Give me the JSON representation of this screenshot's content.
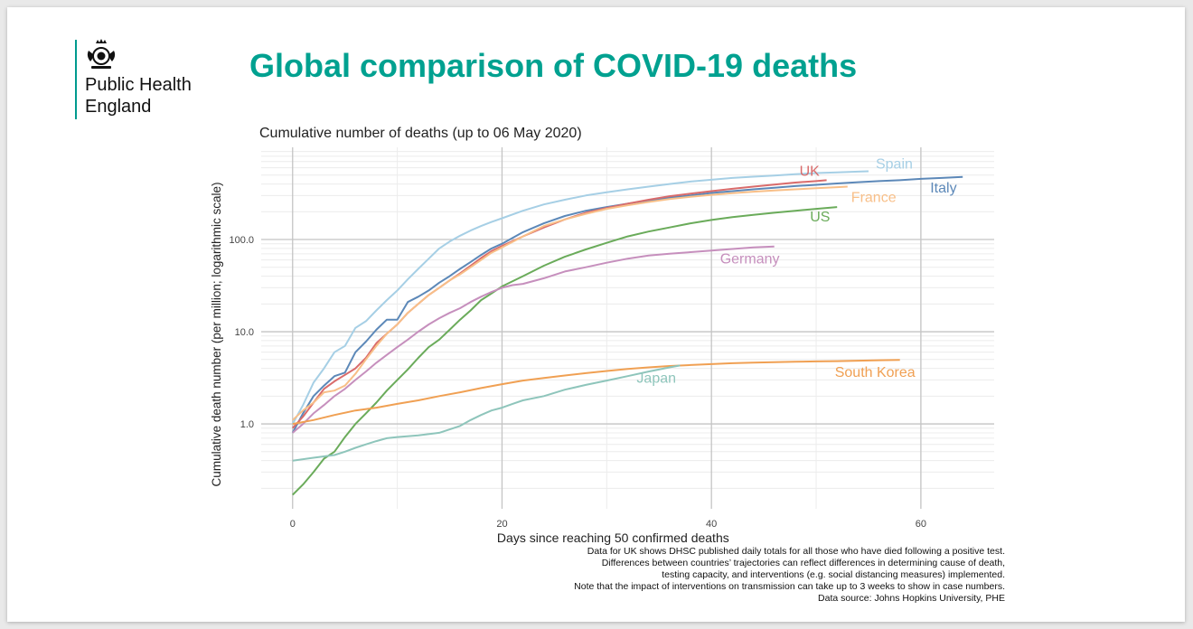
{
  "slide": {
    "org_line1": "Public Health",
    "org_line2": "England",
    "title": "Global comparison of COVID-19 deaths",
    "accent_color": "#00a190",
    "logo_icon": "royal-crest-icon"
  },
  "chart_data": {
    "type": "line",
    "title": "Cumulative number of deaths (up to 06 May 2020)",
    "xlabel": "Days since reaching 50 confirmed deaths",
    "ylabel": "Cumulative death number (per million; logarithmic scale)",
    "y_scale": "log",
    "xlim": [
      -3,
      67
    ],
    "ylim": [
      0.12,
      1000
    ],
    "x_ticks": [
      0,
      20,
      40,
      60
    ],
    "x_tick_labels": [
      "0",
      "20",
      "40",
      "60"
    ],
    "y_ticks": [
      1,
      10,
      100
    ],
    "y_tick_labels": [
      "1.0",
      "10.0",
      "100.0"
    ],
    "grid": true,
    "legend": "direct labels at line ends",
    "series": [
      {
        "name": "Spain",
        "color": "#a6cfe5",
        "x": [
          0,
          1,
          2,
          3,
          4,
          5,
          6,
          7,
          8,
          9,
          10,
          11,
          12,
          13,
          14,
          15,
          16,
          17,
          18,
          19,
          20,
          22,
          24,
          26,
          28,
          30,
          32,
          34,
          36,
          38,
          40,
          42,
          44,
          46,
          48,
          50,
          52,
          54,
          55
        ],
        "y": [
          1.0,
          1.6,
          2.8,
          4.0,
          6.0,
          7.0,
          11,
          13,
          17,
          22,
          28,
          37,
          48,
          62,
          80,
          95,
          110,
          125,
          140,
          155,
          170,
          205,
          240,
          270,
          300,
          325,
          350,
          375,
          400,
          425,
          445,
          465,
          480,
          495,
          510,
          525,
          535,
          545,
          550
        ]
      },
      {
        "name": "Italy",
        "color": "#5c88b8",
        "x": [
          0,
          1,
          2,
          3,
          4,
          5,
          6,
          7,
          8,
          9,
          10,
          11,
          12,
          13,
          14,
          15,
          16,
          17,
          18,
          19,
          20,
          22,
          24,
          26,
          28,
          30,
          32,
          34,
          36,
          38,
          40,
          42,
          44,
          46,
          48,
          50,
          52,
          54,
          56,
          58,
          60,
          62,
          64
        ],
        "y": [
          0.8,
          1.3,
          2.0,
          2.6,
          3.3,
          3.6,
          6.0,
          7.8,
          10.5,
          13.5,
          13.5,
          21,
          24,
          28,
          34,
          40,
          48,
          57,
          68,
          80,
          90,
          120,
          150,
          180,
          205,
          225,
          245,
          265,
          285,
          300,
          320,
          335,
          350,
          365,
          380,
          392,
          405,
          418,
          430,
          440,
          455,
          465,
          477
        ]
      },
      {
        "name": "UK",
        "color": "#d96b6b",
        "x": [
          0,
          1,
          2,
          3,
          4,
          5,
          6,
          7,
          8,
          9,
          10,
          11,
          12,
          13,
          14,
          15,
          16,
          17,
          18,
          19,
          20,
          22,
          24,
          26,
          28,
          30,
          32,
          34,
          36,
          38,
          40,
          42,
          44,
          46,
          48,
          50,
          51
        ],
        "y": [
          0.9,
          1.2,
          1.7,
          2.4,
          2.9,
          3.4,
          4.0,
          5.2,
          7.5,
          9.5,
          12,
          16,
          20,
          25,
          30,
          36,
          43,
          52,
          63,
          75,
          85,
          108,
          135,
          165,
          195,
          220,
          245,
          270,
          295,
          315,
          335,
          355,
          375,
          395,
          415,
          430,
          440
        ]
      },
      {
        "name": "France",
        "color": "#f8bf88",
        "x": [
          0,
          1,
          2,
          3,
          4,
          5,
          6,
          7,
          8,
          9,
          10,
          11,
          12,
          13,
          14,
          15,
          16,
          17,
          18,
          19,
          20,
          22,
          24,
          26,
          28,
          30,
          32,
          34,
          36,
          38,
          40,
          42,
          44,
          46,
          48,
          50,
          52,
          53
        ],
        "y": [
          1.1,
          1.4,
          1.7,
          2.2,
          2.3,
          2.6,
          3.5,
          5.0,
          7.0,
          9.5,
          12,
          16,
          20,
          25,
          30,
          36,
          42,
          50,
          60,
          72,
          82,
          108,
          140,
          165,
          190,
          215,
          235,
          255,
          275,
          290,
          305,
          318,
          330,
          340,
          350,
          360,
          370,
          375
        ]
      },
      {
        "name": "US",
        "color": "#6aab5a",
        "x": [
          0,
          1,
          2,
          3,
          4,
          5,
          6,
          7,
          8,
          9,
          10,
          11,
          12,
          13,
          14,
          15,
          16,
          17,
          18,
          19,
          20,
          22,
          24,
          26,
          28,
          30,
          32,
          34,
          36,
          38,
          40,
          42,
          44,
          46,
          48,
          50,
          52
        ],
        "y": [
          0.17,
          0.22,
          0.3,
          0.42,
          0.5,
          0.72,
          1.0,
          1.3,
          1.7,
          2.3,
          3.0,
          3.9,
          5.2,
          6.8,
          8.2,
          10.5,
          13.5,
          17,
          22,
          26,
          31,
          40,
          52,
          65,
          78,
          92,
          108,
          122,
          135,
          150,
          163,
          175,
          185,
          195,
          205,
          215,
          225
        ]
      },
      {
        "name": "Germany",
        "color": "#c68fbd",
        "x": [
          0,
          1,
          2,
          3,
          4,
          5,
          6,
          7,
          8,
          9,
          10,
          11,
          12,
          13,
          14,
          15,
          16,
          17,
          18,
          19,
          20,
          21,
          22,
          24,
          26,
          28,
          30,
          32,
          34,
          36,
          38,
          40,
          42,
          44,
          46
        ],
        "y": [
          0.8,
          1.0,
          1.3,
          1.6,
          2.0,
          2.4,
          3.0,
          3.7,
          4.6,
          5.6,
          6.8,
          8.2,
          10,
          12,
          14,
          16,
          18,
          21,
          24,
          27,
          30,
          32,
          33,
          38,
          45,
          50,
          56,
          62,
          67,
          70,
          73,
          76,
          79,
          82,
          84
        ]
      },
      {
        "name": "South Korea",
        "color": "#f0a053",
        "x": [
          0,
          2,
          4,
          6,
          8,
          10,
          12,
          14,
          16,
          18,
          20,
          22,
          24,
          26,
          28,
          30,
          32,
          34,
          36,
          38,
          40,
          42,
          44,
          46,
          48,
          50,
          52,
          54,
          56,
          58
        ],
        "y": [
          1.0,
          1.1,
          1.25,
          1.4,
          1.5,
          1.65,
          1.8,
          2.0,
          2.2,
          2.45,
          2.7,
          2.95,
          3.15,
          3.35,
          3.55,
          3.75,
          3.95,
          4.1,
          4.25,
          4.35,
          4.45,
          4.55,
          4.62,
          4.68,
          4.72,
          4.76,
          4.8,
          4.85,
          4.9,
          4.95
        ]
      },
      {
        "name": "Japan",
        "color": "#8ec5bb",
        "x": [
          0,
          2,
          4,
          5,
          6,
          7,
          8,
          9,
          10,
          12,
          14,
          16,
          17,
          18,
          19,
          20,
          21,
          22,
          24,
          26,
          28,
          30,
          32,
          34,
          36,
          37
        ],
        "y": [
          0.4,
          0.43,
          0.46,
          0.5,
          0.55,
          0.6,
          0.65,
          0.7,
          0.72,
          0.75,
          0.8,
          0.95,
          1.1,
          1.25,
          1.4,
          1.5,
          1.65,
          1.8,
          2.0,
          2.35,
          2.65,
          2.95,
          3.3,
          3.7,
          4.1,
          4.3
        ]
      }
    ],
    "notes": [
      "Data for UK shows DHSC published daily totals for all those who have died following a positive test.",
      "Differences between countries’ trajectories can reflect differences in determining cause of death,",
      "testing capacity, and interventions (e.g. social distancing measures) implemented.",
      "Note that the impact of interventions on transmission can take up to 3 weeks to show in case numbers.",
      "Data source: Johns Hopkins University, PHE"
    ]
  }
}
